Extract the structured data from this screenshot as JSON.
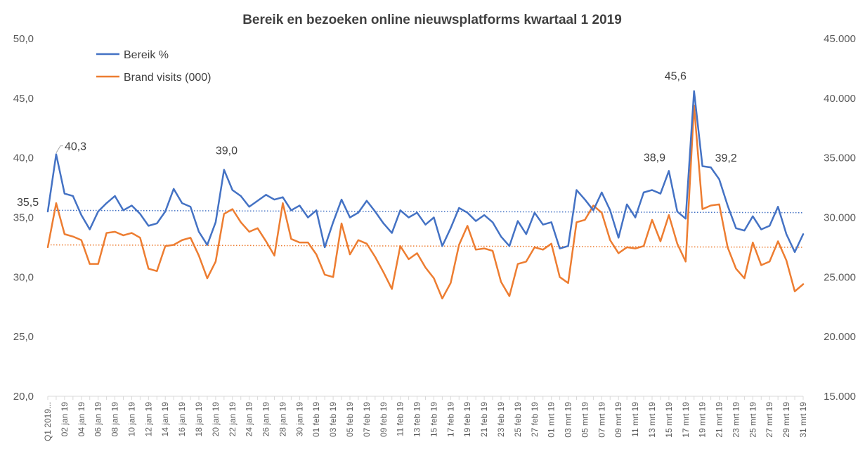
{
  "chart_data": {
    "type": "line",
    "title": "Bereik en bezoeken online nieuwsplatforms kwartaal 1 2019",
    "colors": {
      "bereik": "#4472C4",
      "visits": "#ED7D31",
      "axis": "#D9D9D9",
      "text": "#595959"
    },
    "y_left": {
      "min": 20,
      "max": 50,
      "step": 5,
      "tick_labels": [
        "20,0",
        "25,0",
        "30,0",
        "35,0",
        "40,0",
        "45,0",
        "50,0"
      ]
    },
    "y_right": {
      "min": 15000,
      "max": 45000,
      "step": 5000,
      "tick_labels": [
        "15.000",
        "20.000",
        "25.000",
        "30.000",
        "35.000",
        "40.000",
        "45.000"
      ]
    },
    "x_tick_labels": [
      "Q1 2019...",
      "02 jan 19",
      "04 jan 19",
      "06 jan 19",
      "08 jan 19",
      "10 jan 19",
      "12 jan 19",
      "14 jan 19",
      "16 jan 19",
      "18 jan 19",
      "20 jan 19",
      "22 jan 19",
      "24 jan 19",
      "26 jan 19",
      "28 jan 19",
      "30 jan 19",
      "01 feb 19",
      "03 feb 19",
      "05 feb 19",
      "07 feb 19",
      "09 feb 19",
      "11 feb 19",
      "13 feb 19",
      "15 feb 19",
      "17 feb 19",
      "19 feb 19",
      "21 feb 19",
      "23 feb 19",
      "25 feb 19",
      "27 feb 19",
      "01 mrt 19",
      "03 mrt 19",
      "05 mrt 19",
      "07 mrt 19",
      "09 mrt 19",
      "11 mrt 19",
      "13 mrt 19",
      "15 mrt 19",
      "17 mrt 19",
      "19 mrt 19",
      "21 mrt 19",
      "23 mrt 19",
      "25 mrt 19",
      "27 mrt 19",
      "29 mrt 19",
      "31 mrt 19"
    ],
    "series": [
      {
        "name": "Bereik %",
        "axis": "left",
        "values": [
          35.5,
          40.3,
          37.0,
          36.8,
          35.2,
          34.0,
          35.5,
          36.2,
          36.8,
          35.6,
          36.0,
          35.3,
          34.3,
          34.5,
          35.5,
          37.4,
          36.2,
          35.9,
          33.8,
          32.7,
          34.6,
          39.0,
          37.3,
          36.8,
          35.9,
          36.4,
          36.9,
          36.5,
          36.7,
          35.6,
          36.0,
          35.0,
          35.6,
          32.5,
          34.6,
          36.5,
          35.0,
          35.4,
          36.4,
          35.5,
          34.5,
          33.7,
          35.6,
          35.0,
          35.4,
          34.4,
          35.0,
          32.6,
          34.1,
          35.8,
          35.4,
          34.7,
          35.2,
          34.6,
          33.4,
          32.6,
          34.7,
          33.6,
          35.4,
          34.4,
          34.6,
          32.4,
          32.6,
          37.3,
          36.5,
          35.6,
          37.1,
          35.6,
          33.3,
          36.1,
          35.0,
          37.1,
          37.3,
          37.0,
          38.9,
          35.5,
          34.9,
          45.6,
          39.3,
          39.2,
          38.2,
          36.0,
          34.1,
          33.9,
          35.1,
          34.0,
          34.3,
          35.9,
          33.6,
          32.1,
          33.6
        ]
      },
      {
        "name": "Brand visits (000)",
        "axis": "right",
        "values": [
          27.5,
          31.2,
          28.6,
          28.4,
          28.1,
          26.1,
          26.1,
          28.7,
          28.8,
          28.5,
          28.7,
          28.3,
          25.7,
          25.5,
          27.6,
          27.7,
          28.1,
          28.3,
          26.8,
          24.9,
          26.3,
          30.3,
          30.7,
          29.6,
          28.8,
          29.1,
          28.0,
          26.8,
          31.2,
          28.2,
          27.9,
          27.9,
          26.9,
          25.2,
          25.0,
          29.5,
          26.9,
          28.1,
          27.8,
          26.7,
          25.4,
          24.0,
          27.6,
          26.5,
          27.0,
          25.8,
          24.9,
          23.2,
          24.5,
          27.7,
          29.3,
          27.3,
          27.4,
          27.2,
          24.6,
          23.4,
          26.1,
          26.3,
          27.5,
          27.3,
          27.8,
          25.0,
          24.5,
          29.6,
          29.8,
          31.0,
          30.4,
          28.1,
          27.0,
          27.5,
          27.4,
          27.6,
          29.8,
          28.0,
          30.2,
          27.8,
          26.3,
          39.4,
          30.7,
          31.0,
          31.1,
          27.5,
          25.7,
          24.9,
          27.9,
          26.0,
          26.3,
          28.0,
          26.4,
          23.8,
          24.4
        ]
      }
    ],
    "trendlines": [
      {
        "series": "Bereik %",
        "axis": "left",
        "start": 35.6,
        "end": 35.4,
        "style": "dotted"
      },
      {
        "series": "Brand visits (000)",
        "axis": "right",
        "start": 27.7,
        "end": 27.5,
        "style": "dotted"
      }
    ],
    "data_labels": [
      {
        "index": 0,
        "text": "35,5"
      },
      {
        "index": 1,
        "text": "40,3"
      },
      {
        "index": 21,
        "text": "39,0"
      },
      {
        "index": 74,
        "text": "38,9"
      },
      {
        "index": 77,
        "text": "45,6"
      },
      {
        "index": 79,
        "text": "39,2"
      }
    ],
    "legend": {
      "placement": "top-left",
      "entries": [
        "Bereik %",
        "Brand visits (000)"
      ]
    },
    "grid": false
  }
}
